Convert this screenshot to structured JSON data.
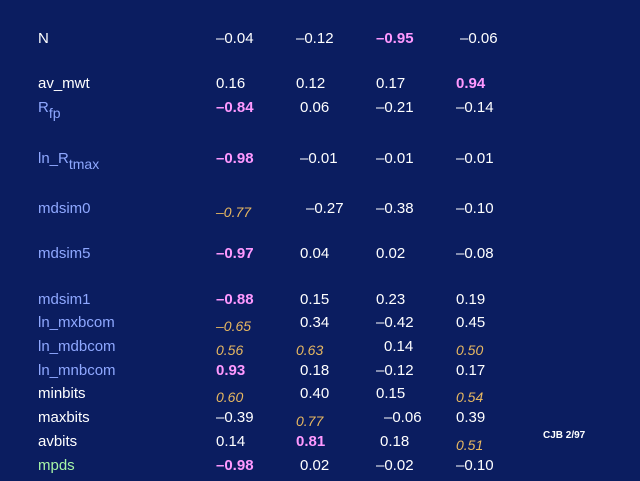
{
  "rows": [
    {
      "label": "N",
      "label_sub": "",
      "label_color": "white",
      "cells": [
        {
          "text": "–0.04",
          "style": "norm"
        },
        {
          "text": "–0.12",
          "style": "norm"
        },
        {
          "text": "–0.95",
          "style": "bold"
        },
        {
          "text": "–0.06",
          "style": "norm"
        }
      ]
    },
    {
      "label": "av_mwt",
      "label_sub": "",
      "label_color": "white",
      "cells": [
        {
          "text": "0.16",
          "style": "norm"
        },
        {
          "text": "0.12",
          "style": "norm"
        },
        {
          "text": "0.17",
          "style": "norm"
        },
        {
          "text": "0.94",
          "style": "bold"
        }
      ]
    },
    {
      "label": "R",
      "label_sub": "fp",
      "label_color": "blue",
      "cells": [
        {
          "text": "–0.84",
          "style": "bold"
        },
        {
          "text": "0.06",
          "style": "norm"
        },
        {
          "text": "–0.21",
          "style": "norm"
        },
        {
          "text": "–0.14",
          "style": "norm"
        }
      ]
    },
    {
      "label": "ln_R",
      "label_sub": "tmax",
      "label_color": "blue",
      "cells": [
        {
          "text": "–0.98",
          "style": "bold"
        },
        {
          "text": "–0.01",
          "style": "norm"
        },
        {
          "text": "–0.01",
          "style": "norm"
        },
        {
          "text": "–0.01",
          "style": "norm"
        }
      ]
    },
    {
      "label": "mdsim0",
      "label_sub": "",
      "label_color": "blue",
      "cells": [
        {
          "text": "–0.77",
          "style": "ital"
        },
        {
          "text": "–0.27",
          "style": "norm"
        },
        {
          "text": "–0.38",
          "style": "norm"
        },
        {
          "text": "–0.10",
          "style": "norm"
        }
      ]
    },
    {
      "label": "mdsim5",
      "label_sub": "",
      "label_color": "blue",
      "cells": [
        {
          "text": "–0.97",
          "style": "bold"
        },
        {
          "text": "0.04",
          "style": "norm"
        },
        {
          "text": "0.02",
          "style": "norm"
        },
        {
          "text": "–0.08",
          "style": "norm"
        }
      ]
    },
    {
      "label": "mdsim1",
      "label_sub": "",
      "label_color": "blue",
      "cells": [
        {
          "text": "–0.88",
          "style": "bold"
        },
        {
          "text": "0.15",
          "style": "norm"
        },
        {
          "text": "0.23",
          "style": "norm"
        },
        {
          "text": "0.19",
          "style": "norm"
        }
      ]
    },
    {
      "label": "ln_mxbcom",
      "label_sub": "",
      "label_color": "blue",
      "cells": [
        {
          "text": "–0.65",
          "style": "ital"
        },
        {
          "text": "0.34",
          "style": "norm"
        },
        {
          "text": "–0.42",
          "style": "norm"
        },
        {
          "text": "0.45",
          "style": "norm"
        }
      ]
    },
    {
      "label": "ln_mdbcom",
      "label_sub": "",
      "label_color": "blue",
      "cells": [
        {
          "text": "0.56",
          "style": "ital"
        },
        {
          "text": "0.63",
          "style": "ital"
        },
        {
          "text": "0.14",
          "style": "norm"
        },
        {
          "text": "0.50",
          "style": "ital"
        }
      ]
    },
    {
      "label": "ln_mnbcom",
      "label_sub": "",
      "label_color": "blue",
      "cells": [
        {
          "text": "0.93",
          "style": "bold"
        },
        {
          "text": "0.18",
          "style": "norm"
        },
        {
          "text": "–0.12",
          "style": "norm"
        },
        {
          "text": "0.17",
          "style": "norm"
        }
      ]
    },
    {
      "label": "minbits",
      "label_sub": "",
      "label_color": "white",
      "cells": [
        {
          "text": "0.60",
          "style": "ital"
        },
        {
          "text": "0.40",
          "style": "norm"
        },
        {
          "text": "0.15",
          "style": "norm"
        },
        {
          "text": "0.54",
          "style": "ital"
        }
      ]
    },
    {
      "label": "maxbits",
      "label_sub": "",
      "label_color": "white",
      "cells": [
        {
          "text": "–0.39",
          "style": "norm"
        },
        {
          "text": "0.77",
          "style": "ital"
        },
        {
          "text": "–0.06",
          "style": "norm"
        },
        {
          "text": "0.39",
          "style": "norm"
        }
      ]
    },
    {
      "label": "avbits",
      "label_sub": "",
      "label_color": "white",
      "cells": [
        {
          "text": "0.14",
          "style": "norm"
        },
        {
          "text": "0.81",
          "style": "bold"
        },
        {
          "text": "0.18",
          "style": "norm"
        },
        {
          "text": "0.51",
          "style": "ital"
        }
      ]
    },
    {
      "label": "mpds",
      "label_sub": "",
      "label_color": "green",
      "cells": [
        {
          "text": "–0.98",
          "style": "bold"
        },
        {
          "text": "0.02",
          "style": "norm"
        },
        {
          "text": "–0.02",
          "style": "norm"
        },
        {
          "text": "–0.10",
          "style": "norm"
        }
      ]
    }
  ],
  "credit": "CJB 2/97"
}
